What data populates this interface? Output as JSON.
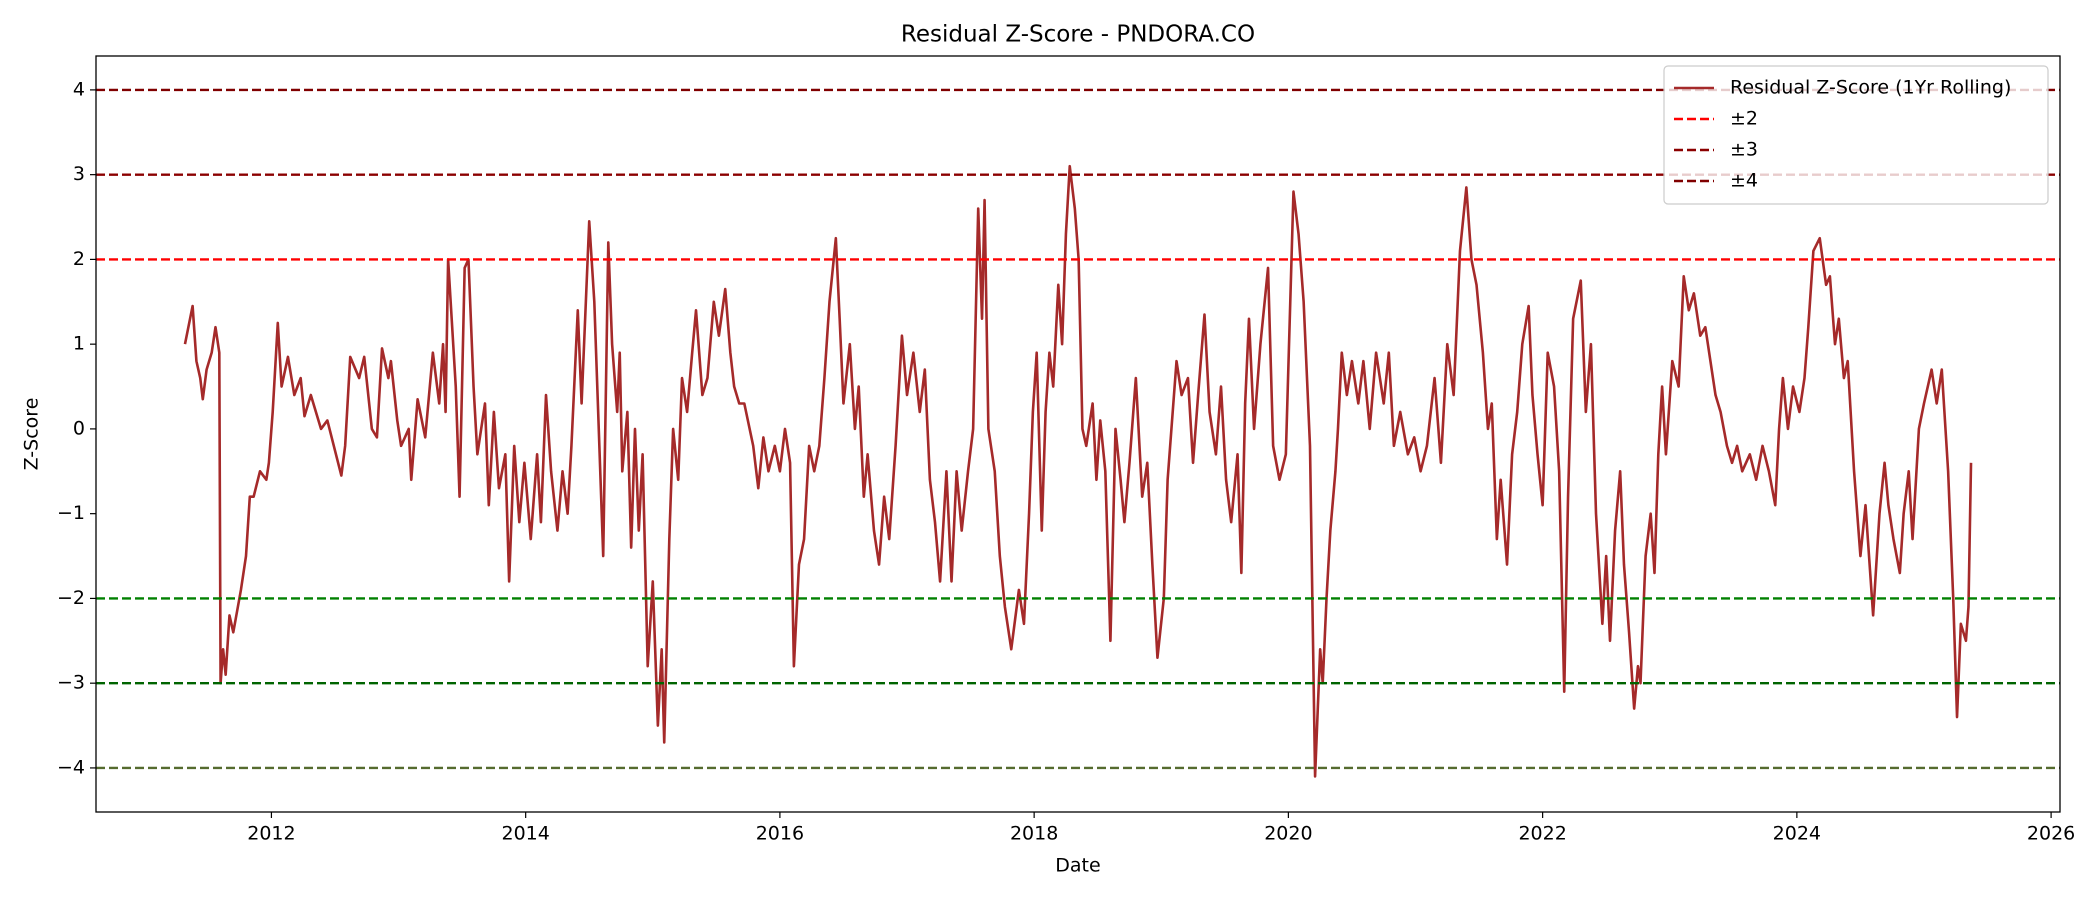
{
  "chart_data": {
    "type": "line",
    "title": "Residual Z-Score - PNDORA.CO",
    "xlabel": "Date",
    "ylabel": "Z-Score",
    "x": [
      2011.32,
      2011.38,
      2011.41,
      2011.44,
      2011.46,
      2011.49,
      2011.53,
      2011.56,
      2011.59,
      2011.6,
      2011.62,
      2011.64,
      2011.67,
      2011.7,
      2011.76,
      2011.8,
      2011.83,
      2011.86,
      2011.91,
      2011.96,
      2011.98,
      2012.01,
      2012.05,
      2012.08,
      2012.13,
      2012.18,
      2012.23,
      2012.26,
      2012.31,
      2012.39,
      2012.44,
      2012.55,
      2012.58,
      2012.62,
      2012.69,
      2012.73,
      2012.79,
      2012.83,
      2012.87,
      2012.92,
      2012.94,
      2012.99,
      2013.02,
      2013.08,
      2013.1,
      2013.15,
      2013.21,
      2013.27,
      2013.32,
      2013.35,
      2013.37,
      2013.39,
      2013.45,
      2013.48,
      2013.52,
      2013.55,
      2013.59,
      2013.62,
      2013.68,
      2013.71,
      2013.75,
      2013.79,
      2013.84,
      2013.87,
      2013.91,
      2013.95,
      2013.99,
      2014.04,
      2014.09,
      2014.12,
      2014.16,
      2014.2,
      2014.25,
      2014.29,
      2014.33,
      2014.36,
      2014.41,
      2014.44,
      2014.5,
      2014.54,
      2014.61,
      2014.65,
      2014.68,
      2014.72,
      2014.74,
      2014.76,
      2014.8,
      2014.83,
      2014.86,
      2014.89,
      2014.92,
      2014.96,
      2015.0,
      2015.04,
      2015.07,
      2015.09,
      2015.13,
      2015.16,
      2015.2,
      2015.23,
      2015.27,
      2015.31,
      2015.34,
      2015.39,
      2015.43,
      2015.48,
      2015.52,
      2015.57,
      2015.61,
      2015.64,
      2015.68,
      2015.72,
      2015.79,
      2015.83,
      2015.87,
      2015.91,
      2015.96,
      2016.0,
      2016.04,
      2016.08,
      2016.11,
      2016.15,
      2016.19,
      2016.23,
      2016.27,
      2016.31,
      2016.35,
      2016.39,
      2016.44,
      2016.47,
      2016.5,
      2016.55,
      2016.59,
      2016.62,
      2016.66,
      2016.69,
      2016.74,
      2016.78,
      2016.82,
      2016.86,
      2016.91,
      2016.96,
      2017.0,
      2017.05,
      2017.1,
      2017.14,
      2017.18,
      2017.22,
      2017.26,
      2017.31,
      2017.35,
      2017.39,
      2017.43,
      2017.48,
      2017.52,
      2017.56,
      2017.59,
      2017.61,
      2017.64,
      2017.69,
      2017.73,
      2017.77,
      2017.82,
      2017.88,
      2017.92,
      2017.96,
      2017.99,
      2018.02,
      2018.06,
      2018.09,
      2018.12,
      2018.15,
      2018.19,
      2018.22,
      2018.25,
      2018.28,
      2018.32,
      2018.35,
      2018.38,
      2018.41,
      2018.46,
      2018.49,
      2018.52,
      2018.56,
      2018.6,
      2018.64,
      2018.68,
      2018.71,
      2018.75,
      2018.8,
      2018.85,
      2018.89,
      2018.93,
      2018.97,
      2019.02,
      2019.05,
      2019.08,
      2019.12,
      2019.16,
      2019.21,
      2019.25,
      2019.29,
      2019.34,
      2019.38,
      2019.43,
      2019.47,
      2019.51,
      2019.55,
      2019.6,
      2019.63,
      2019.66,
      2019.69,
      2019.73,
      2019.78,
      2019.84,
      2019.88,
      2019.93,
      2019.98,
      2020.04,
      2020.08,
      2020.12,
      2020.17,
      2020.21,
      2020.25,
      2020.27,
      2020.3,
      2020.33,
      2020.37,
      2020.39,
      2020.42,
      2020.46,
      2020.5,
      2020.55,
      2020.59,
      2020.64,
      2020.69,
      2020.75,
      2020.79,
      2020.83,
      2020.88,
      2020.94,
      2020.99,
      2021.04,
      2021.09,
      2021.15,
      2021.2,
      2021.25,
      2021.3,
      2021.35,
      2021.4,
      2021.44,
      2021.48,
      2021.53,
      2021.57,
      2021.6,
      2021.64,
      2021.67,
      2021.72,
      2021.76,
      2021.8,
      2021.84,
      2021.89,
      2021.92,
      2021.96,
      2022.0,
      2022.04,
      2022.09,
      2022.13,
      2022.17,
      2022.2,
      2022.24,
      2022.3,
      2022.34,
      2022.38,
      2022.42,
      2022.47,
      2022.5,
      2022.53,
      2022.57,
      2022.61,
      2022.64,
      2022.68,
      2022.72,
      2022.75,
      2022.77,
      2022.81,
      2022.85,
      2022.88,
      2022.91,
      2022.94,
      2022.97,
      2023.02,
      2023.07,
      2023.11,
      2023.15,
      2023.19,
      2023.24,
      2023.28,
      2023.32,
      2023.36,
      2023.4,
      2023.45,
      2023.49,
      2023.53,
      2023.57,
      2023.63,
      2023.68,
      2023.73,
      2023.78,
      2023.83,
      2023.86,
      2023.89,
      2023.93,
      2023.97,
      2024.02,
      2024.06,
      2024.09,
      2024.13,
      2024.18,
      2024.23,
      2024.26,
      2024.3,
      2024.33,
      2024.37,
      2024.4,
      2024.45,
      2024.5,
      2024.54,
      2024.6,
      2024.65,
      2024.69,
      2024.72,
      2024.76,
      2024.81,
      2024.84,
      2024.88,
      2024.91,
      2024.96,
      2025.0,
      2025.06,
      2025.1,
      2025.14,
      2025.19,
      2025.23,
      2025.26,
      2025.29,
      2025.33,
      2025.35,
      2025.37
    ],
    "series": [
      {
        "name": "Residual Z-Score (1Yr Rolling)",
        "color": "#a52a2a",
        "values": [
          1.0,
          1.45,
          0.8,
          0.6,
          0.35,
          0.7,
          0.9,
          1.2,
          0.9,
          -3.0,
          -2.6,
          -2.9,
          -2.2,
          -2.4,
          -1.9,
          -1.5,
          -0.8,
          -0.8,
          -0.5,
          -0.6,
          -0.4,
          0.2,
          1.25,
          0.5,
          0.85,
          0.4,
          0.6,
          0.15,
          0.4,
          0.0,
          0.1,
          -0.55,
          -0.2,
          0.85,
          0.6,
          0.85,
          0.0,
          -0.1,
          0.95,
          0.6,
          0.8,
          0.1,
          -0.2,
          0.0,
          -0.6,
          0.35,
          -0.1,
          0.9,
          0.3,
          1.0,
          0.2,
          2.0,
          0.5,
          -0.8,
          1.9,
          2.0,
          0.5,
          -0.3,
          0.3,
          -0.9,
          0.2,
          -0.7,
          -0.3,
          -1.8,
          -0.2,
          -1.1,
          -0.4,
          -1.3,
          -0.3,
          -1.1,
          0.4,
          -0.5,
          -1.2,
          -0.5,
          -1.0,
          -0.2,
          1.4,
          0.3,
          2.45,
          1.5,
          -1.5,
          2.2,
          1.0,
          0.2,
          0.9,
          -0.5,
          0.2,
          -1.4,
          0.0,
          -1.2,
          -0.3,
          -2.8,
          -1.8,
          -3.5,
          -2.6,
          -3.7,
          -1.3,
          0.0,
          -0.6,
          0.6,
          0.2,
          0.9,
          1.4,
          0.4,
          0.6,
          1.5,
          1.1,
          1.65,
          0.9,
          0.5,
          0.3,
          0.3,
          -0.2,
          -0.7,
          -0.1,
          -0.5,
          -0.2,
          -0.5,
          0.0,
          -0.4,
          -2.8,
          -1.6,
          -1.3,
          -0.2,
          -0.5,
          -0.2,
          0.6,
          1.5,
          2.25,
          1.3,
          0.3,
          1.0,
          0.0,
          0.5,
          -0.8,
          -0.3,
          -1.2,
          -1.6,
          -0.8,
          -1.3,
          -0.2,
          1.1,
          0.4,
          0.9,
          0.2,
          0.7,
          -0.6,
          -1.1,
          -1.8,
          -0.5,
          -1.8,
          -0.5,
          -1.2,
          -0.5,
          0.0,
          2.6,
          1.3,
          2.7,
          0.0,
          -0.5,
          -1.5,
          -2.1,
          -2.6,
          -1.9,
          -2.3,
          -1.0,
          0.2,
          0.9,
          -1.2,
          0.2,
          0.9,
          0.5,
          1.7,
          1.0,
          2.3,
          3.1,
          2.6,
          2.0,
          0.0,
          -0.2,
          0.3,
          -0.6,
          0.1,
          -0.5,
          -2.5,
          0.0,
          -0.6,
          -1.1,
          -0.4,
          0.6,
          -0.8,
          -0.4,
          -1.6,
          -2.7,
          -2.0,
          -0.6,
          0.0,
          0.8,
          0.4,
          0.6,
          -0.4,
          0.4,
          1.35,
          0.2,
          -0.3,
          0.5,
          -0.6,
          -1.1,
          -0.3,
          -1.7,
          0.3,
          1.3,
          0.0,
          1.0,
          1.9,
          -0.2,
          -0.6,
          -0.3,
          2.8,
          2.3,
          1.5,
          -0.2,
          -4.1,
          -2.6,
          -3.0,
          -2.0,
          -1.2,
          -0.5,
          0.0,
          0.9,
          0.4,
          0.8,
          0.3,
          0.8,
          0.0,
          0.9,
          0.3,
          0.9,
          -0.2,
          0.2,
          -0.3,
          -0.1,
          -0.5,
          -0.2,
          0.6,
          -0.4,
          1.0,
          0.4,
          2.1,
          2.85,
          2.0,
          1.7,
          0.9,
          0.0,
          0.3,
          -1.3,
          -0.6,
          -1.6,
          -0.3,
          0.2,
          1.0,
          1.45,
          0.4,
          -0.3,
          -0.9,
          0.9,
          0.5,
          -0.5,
          -3.1,
          -0.8,
          1.3,
          1.75,
          0.2,
          1.0,
          -1.0,
          -2.3,
          -1.5,
          -2.5,
          -1.2,
          -0.5,
          -1.6,
          -2.4,
          -3.3,
          -2.8,
          -3.0,
          -1.5,
          -1.0,
          -1.7,
          -0.3,
          0.5,
          -0.3,
          0.8,
          0.5,
          1.8,
          1.4,
          1.6,
          1.1,
          1.2,
          0.8,
          0.4,
          0.2,
          -0.2,
          -0.4,
          -0.2,
          -0.5,
          -0.3,
          -0.6,
          -0.2,
          -0.5,
          -0.9,
          0.0,
          0.6,
          0.0,
          0.5,
          0.2,
          0.6,
          1.2,
          2.1,
          2.25,
          1.7,
          1.8,
          1.0,
          1.3,
          0.6,
          0.8,
          -0.5,
          -1.5,
          -0.9,
          -2.2,
          -1.0,
          -0.4,
          -0.9,
          -1.3,
          -1.7,
          -1.0,
          -0.5,
          -1.3,
          0.0,
          0.3,
          0.7,
          0.3,
          0.7,
          -0.5,
          -2.0,
          -3.4,
          -2.3,
          -2.5,
          -2.1,
          -0.4
        ]
      }
    ],
    "hlines": [
      {
        "name": "±2",
        "color": "#ff0000",
        "value": 2
      },
      {
        "color": "#008000",
        "value": -2
      },
      {
        "name": "±3",
        "color": "#8b0000",
        "value": 3
      },
      {
        "color": "#006400",
        "value": -3
      },
      {
        "name": "±4",
        "color": "#800000",
        "value": 4
      },
      {
        "color": "#556b2f",
        "value": -4
      }
    ],
    "xlim": [
      2010.62,
      2026.07
    ],
    "ylim": [
      -4.52,
      4.4
    ],
    "xticks": [
      2012,
      2014,
      2016,
      2018,
      2020,
      2022,
      2024,
      2026
    ],
    "yticks": [
      {
        "value": -4,
        "label": "−4"
      },
      {
        "value": -3,
        "label": "−3"
      },
      {
        "value": -2,
        "label": "−2"
      },
      {
        "value": -1,
        "label": "−1"
      },
      0,
      1,
      2,
      3,
      4
    ],
    "legend": "upper right"
  }
}
